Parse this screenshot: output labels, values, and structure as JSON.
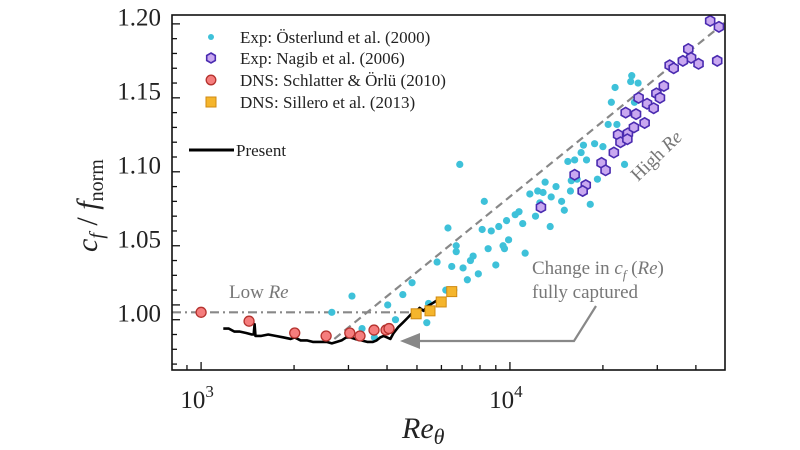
{
  "chart_data": {
    "type": "scatter",
    "title": "",
    "xlabel": "Re",
    "xlabel_sub": "θ",
    "ylabel": "c",
    "ylabel_sub1": "f",
    "ylabel_mid": " / ",
    "ylabel_main2": "f",
    "ylabel_sub2": "norm",
    "xscale": "log",
    "xlim": [
      805,
      49700
    ],
    "ylim": [
      0.961,
      1.201
    ],
    "x_ticks": [
      {
        "value": 1000,
        "base": "10",
        "exp": "3"
      },
      {
        "value": 10000,
        "base": "10",
        "exp": "4"
      }
    ],
    "y_ticks": [
      1.0,
      1.05,
      1.1,
      1.15,
      1.2
    ],
    "y_tick_labels": [
      "1.00",
      "1.05",
      "1.10",
      "1.15",
      "1.20"
    ],
    "legend": {
      "placement": "top-left",
      "entries": [
        {
          "label": "Exp: Österlund et al. (2000)",
          "marker": "dot",
          "color": "#3ec1d9"
        },
        {
          "label": "Exp: Nagib et al. (2006)",
          "marker": "hexagon",
          "color": "#c9a8f0",
          "edge": "#4a2bb0"
        },
        {
          "label": "DNS: Schlatter & Örlü (2010)",
          "marker": "circle",
          "color": "#f57d7d",
          "edge": "#b5322e"
        },
        {
          "label": "DNS: Sillero et al. (2013)",
          "marker": "square",
          "color": "#f5b52c",
          "edge": "#d08a12"
        },
        {
          "label": "Present",
          "marker": "line",
          "color": "#000000"
        }
      ]
    },
    "series": [
      {
        "name": "Exp: Österlund et al. (2000)",
        "marker": "dot",
        "color": "#3ec1d9",
        "points": [
          [
            2650,
            1.0
          ],
          [
            3080,
            1.011
          ],
          [
            3320,
            0.989
          ],
          [
            3640,
            0.983
          ],
          [
            4020,
            1.005
          ],
          [
            4260,
            0.995
          ],
          [
            4500,
            1.012
          ],
          [
            4820,
            1.02
          ],
          [
            5380,
            0.993
          ],
          [
            5450,
            1.006
          ],
          [
            5810,
            1.034
          ],
          [
            6300,
            1.057
          ],
          [
            6200,
            1.015
          ],
          [
            6580,
            1.015
          ],
          [
            6700,
            1.045
          ],
          [
            6700,
            1.041
          ],
          [
            6880,
            1.1
          ],
          [
            6480,
            1.031
          ],
          [
            7050,
            1.03
          ],
          [
            7280,
            1.022
          ],
          [
            7600,
            1.038
          ],
          [
            7450,
            1.035
          ],
          [
            7900,
            1.026
          ],
          [
            8130,
            1.056
          ],
          [
            8260,
            1.075
          ],
          [
            8500,
            1.043
          ],
          [
            8700,
            1.055
          ],
          [
            9000,
            1.032
          ],
          [
            9200,
            1.058
          ],
          [
            9500,
            1.045
          ],
          [
            9600,
            1.043
          ],
          [
            9900,
            1.049
          ],
          [
            10400,
            1.066
          ],
          [
            10700,
            1.068
          ],
          [
            11200,
            1.04
          ],
          [
            11600,
            1.08
          ],
          [
            12500,
            1.074
          ],
          [
            12100,
            1.065
          ],
          [
            12300,
            1.082
          ],
          [
            13000,
            1.088
          ],
          [
            13500,
            1.058
          ],
          [
            13600,
            1.078
          ],
          [
            14100,
            1.085
          ],
          [
            14700,
            1.075
          ],
          [
            15000,
            1.069
          ],
          [
            15700,
            1.082
          ],
          [
            15800,
            1.089
          ],
          [
            16500,
            1.09
          ],
          [
            17000,
            1.108
          ],
          [
            17300,
            1.113
          ],
          [
            17700,
            1.103
          ],
          [
            18200,
            1.073
          ],
          [
            18800,
            1.114
          ],
          [
            19200,
            1.09
          ],
          [
            20000,
            1.112
          ],
          [
            20800,
            1.127
          ],
          [
            21300,
            1.142
          ],
          [
            21900,
            1.152
          ],
          [
            22200,
            1.127
          ],
          [
            23000,
            1.119
          ],
          [
            23500,
            1.1
          ],
          [
            24600,
            1.156
          ],
          [
            24800,
            1.16
          ],
          [
            25300,
            1.142
          ],
          [
            26000,
            1.155
          ],
          [
            16200,
            1.103
          ],
          [
            15400,
            1.102
          ],
          [
            12800,
            1.081
          ],
          [
            11000,
            1.06
          ],
          [
            9750,
            1.062
          ]
        ]
      },
      {
        "name": "Exp: Nagib et al. (2006)",
        "marker": "hexagon",
        "color": "#c9a8f0",
        "points": [
          [
            12600,
            1.071
          ],
          [
            16200,
            1.093
          ],
          [
            17600,
            1.086
          ],
          [
            17200,
            1.082
          ],
          [
            19800,
            1.101
          ],
          [
            20400,
            1.096
          ],
          [
            21700,
            1.108
          ],
          [
            22400,
            1.12
          ],
          [
            22800,
            1.115
          ],
          [
            23700,
            1.135
          ],
          [
            24100,
            1.121
          ],
          [
            25200,
            1.125
          ],
          [
            24000,
            1.117
          ],
          [
            26100,
            1.145
          ],
          [
            27800,
            1.141
          ],
          [
            29800,
            1.148
          ],
          [
            30600,
            1.145
          ],
          [
            31500,
            1.153
          ],
          [
            32900,
            1.167
          ],
          [
            33900,
            1.165
          ],
          [
            37800,
            1.178
          ],
          [
            38600,
            1.172
          ],
          [
            36300,
            1.17
          ],
          [
            40800,
            1.168
          ],
          [
            44500,
            1.197
          ],
          [
            47500,
            1.193
          ],
          [
            46900,
            1.17
          ],
          [
            29200,
            1.138
          ],
          [
            27300,
            1.128
          ],
          [
            25600,
            1.134
          ]
        ]
      },
      {
        "name": "DNS: Schlatter & Örlü (2010)",
        "marker": "circle",
        "color": "#f57d7d",
        "points": [
          [
            1000,
            1.0
          ],
          [
            1430,
            0.994
          ],
          [
            2010,
            0.986
          ],
          [
            2540,
            0.984
          ],
          [
            3030,
            0.986
          ],
          [
            3270,
            0.984
          ],
          [
            3630,
            0.988
          ],
          [
            3970,
            0.988
          ],
          [
            4060,
            0.989
          ]
        ]
      },
      {
        "name": "DNS: Sillero et al. (2013)",
        "marker": "square",
        "color": "#f5b52c",
        "points": [
          [
            4970,
            0.999
          ],
          [
            5510,
            1.001
          ],
          [
            5990,
            1.007
          ],
          [
            6480,
            1.014
          ]
        ]
      },
      {
        "name": "Present",
        "marker": "line",
        "color": "#000000",
        "points": [
          [
            1180,
            0.989
          ],
          [
            1230,
            0.989
          ],
          [
            1280,
            0.987
          ],
          [
            1330,
            0.987
          ],
          [
            1400,
            0.986
          ],
          [
            1460,
            0.985
          ],
          [
            1480,
            0.985
          ],
          [
            1490,
            0.992
          ],
          [
            1500,
            0.984
          ],
          [
            1560,
            0.984
          ],
          [
            1650,
            0.985
          ],
          [
            1750,
            0.984
          ],
          [
            1850,
            0.983
          ],
          [
            1950,
            0.982
          ],
          [
            2010,
            0.983
          ],
          [
            2100,
            0.981
          ],
          [
            2200,
            0.981
          ],
          [
            2300,
            0.98
          ],
          [
            2420,
            0.98
          ],
          [
            2550,
            0.98
          ],
          [
            2650,
            0.979
          ],
          [
            2750,
            0.98
          ],
          [
            2850,
            0.981
          ],
          [
            2950,
            0.983
          ],
          [
            3050,
            0.983
          ],
          [
            3150,
            0.982
          ],
          [
            3300,
            0.981
          ],
          [
            3450,
            0.98
          ],
          [
            3600,
            0.98
          ],
          [
            3700,
            0.981
          ],
          [
            3800,
            0.983
          ],
          [
            3900,
            0.984
          ],
          [
            4000,
            0.983
          ],
          [
            4100,
            0.982
          ],
          [
            4200,
            0.986
          ],
          [
            4350,
            0.99
          ],
          [
            4500,
            0.993
          ],
          [
            4650,
            0.996
          ],
          [
            4800,
            0.999
          ],
          [
            4950,
            1.0
          ],
          [
            5100,
            1.003
          ],
          [
            5250,
            1.001
          ],
          [
            5400,
            1.004
          ],
          [
            5600,
            1.006
          ],
          [
            5800,
            1.008
          ],
          [
            5900,
            1.01
          ]
        ]
      }
    ],
    "reference_lines": [
      {
        "name": "Low Re",
        "style": "dash-dot",
        "color": "#888888",
        "x": [
          805,
          5000
        ],
        "y": [
          1.0,
          1.0
        ]
      },
      {
        "name": "High Re",
        "style": "dashed",
        "color": "#888888",
        "x": [
          2700,
          49700
        ],
        "y": [
          0.982,
          1.196
        ]
      }
    ],
    "annotations": [
      {
        "text_plain": "Low ",
        "text_italic": "Re",
        "role": "low-re-label"
      },
      {
        "text_plain": "High ",
        "text_italic": "Re",
        "role": "high-re-label"
      },
      {
        "line1_a": "Change in ",
        "line1_b": "c",
        "line1_sub": "f",
        "line1_c": " (",
        "line1_d": "Re",
        "line1_e": ")",
        "line2": "fully captured",
        "role": "callout"
      }
    ]
  }
}
